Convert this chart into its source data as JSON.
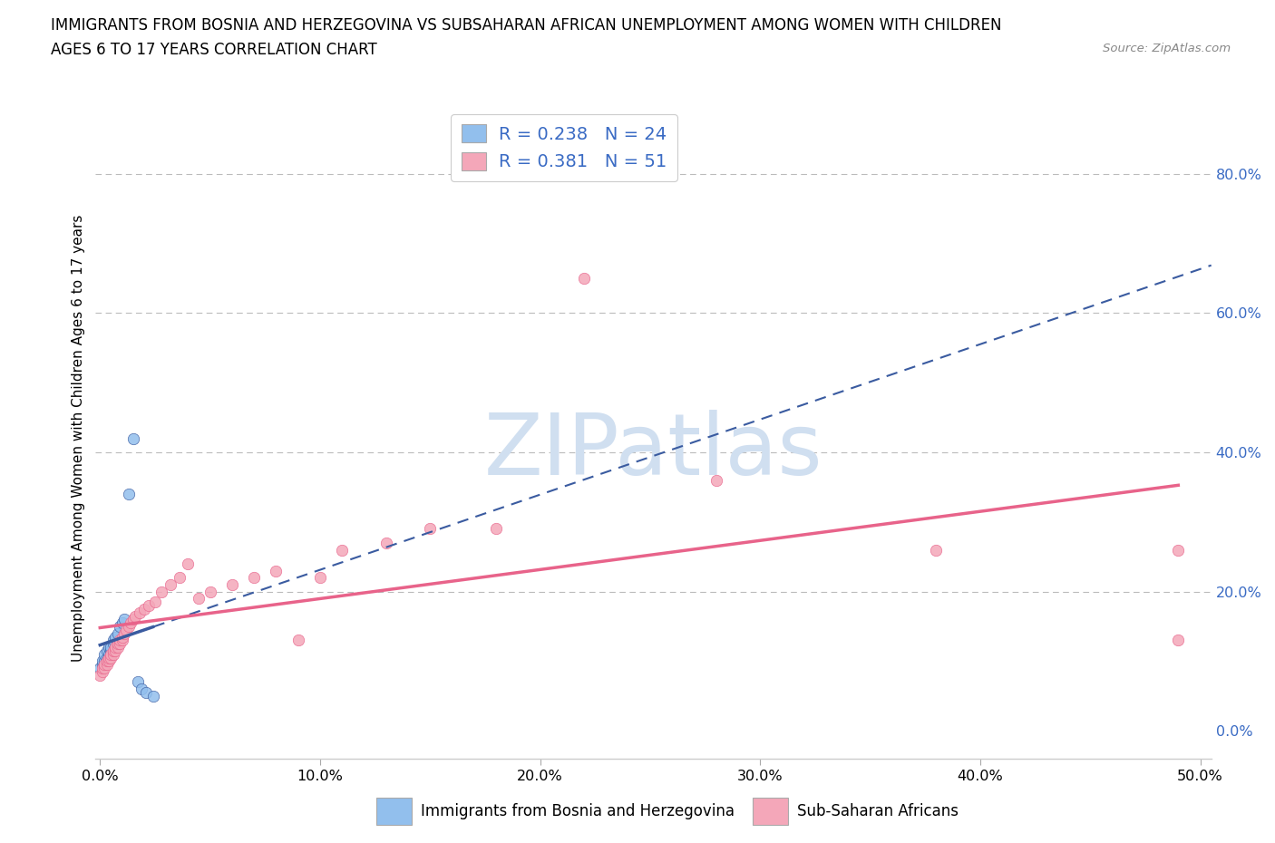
{
  "title_line1": "IMMIGRANTS FROM BOSNIA AND HERZEGOVINA VS SUBSAHARAN AFRICAN UNEMPLOYMENT AMONG WOMEN WITH CHILDREN",
  "title_line2": "AGES 6 TO 17 YEARS CORRELATION CHART",
  "source_text": "Source: ZipAtlas.com",
  "ylabel": "Unemployment Among Women with Children Ages 6 to 17 years",
  "xlim": [
    -0.002,
    0.505
  ],
  "ylim": [
    -0.04,
    0.88
  ],
  "ytick_vals": [
    0.0,
    0.2,
    0.4,
    0.6,
    0.8
  ],
  "ytick_labels": [
    "0.0%",
    "20.0%",
    "40.0%",
    "60.0%",
    "80.0%"
  ],
  "xtick_vals": [
    0.0,
    0.1,
    0.2,
    0.3,
    0.4,
    0.5
  ],
  "xtick_labels": [
    "0.0%",
    "10.0%",
    "20.0%",
    "30.0%",
    "40.0%",
    "50.0%"
  ],
  "color_bosnia": "#92BFED",
  "color_subsaharan": "#F4A7B9",
  "color_trendline_bosnia": "#3A5BA0",
  "color_trendline_subsaharan": "#E8638A",
  "color_blue_text": "#3A6BC4",
  "watermark_text": "ZIPatlas",
  "watermark_color": "#D0DFF0",
  "background_color": "#FFFFFF",
  "legend_label1": "R = 0.238   N = 24",
  "legend_label2": "R = 0.381   N = 51",
  "bottom_label1": "Immigrants from Bosnia and Herzegovina",
  "bottom_label2": "Sub-Saharan Africans",
  "bosnia_x": [
    0.0,
    0.001,
    0.001,
    0.002,
    0.002,
    0.003,
    0.003,
    0.004,
    0.004,
    0.005,
    0.005,
    0.006,
    0.006,
    0.007,
    0.008,
    0.009,
    0.01,
    0.011,
    0.013,
    0.015,
    0.017,
    0.019,
    0.021,
    0.024
  ],
  "bosnia_y": [
    0.09,
    0.095,
    0.1,
    0.1,
    0.11,
    0.105,
    0.115,
    0.11,
    0.12,
    0.115,
    0.12,
    0.125,
    0.13,
    0.135,
    0.14,
    0.15,
    0.155,
    0.16,
    0.34,
    0.42,
    0.07,
    0.06,
    0.055,
    0.05
  ],
  "subsaharan_x": [
    0.0,
    0.001,
    0.001,
    0.002,
    0.002,
    0.003,
    0.003,
    0.004,
    0.004,
    0.005,
    0.005,
    0.006,
    0.006,
    0.007,
    0.007,
    0.008,
    0.008,
    0.009,
    0.009,
    0.01,
    0.01,
    0.011,
    0.012,
    0.013,
    0.014,
    0.015,
    0.016,
    0.018,
    0.02,
    0.022,
    0.025,
    0.028,
    0.032,
    0.036,
    0.04,
    0.045,
    0.05,
    0.06,
    0.07,
    0.08,
    0.09,
    0.1,
    0.11,
    0.13,
    0.15,
    0.18,
    0.22,
    0.28,
    0.38,
    0.49,
    0.49
  ],
  "subsaharan_y": [
    0.08,
    0.085,
    0.09,
    0.09,
    0.095,
    0.095,
    0.1,
    0.1,
    0.105,
    0.105,
    0.11,
    0.11,
    0.115,
    0.115,
    0.12,
    0.12,
    0.125,
    0.125,
    0.13,
    0.13,
    0.135,
    0.14,
    0.145,
    0.15,
    0.155,
    0.16,
    0.165,
    0.17,
    0.175,
    0.18,
    0.185,
    0.2,
    0.21,
    0.22,
    0.24,
    0.19,
    0.2,
    0.21,
    0.22,
    0.23,
    0.13,
    0.22,
    0.26,
    0.27,
    0.29,
    0.29,
    0.65,
    0.36,
    0.26,
    0.26,
    0.13
  ]
}
